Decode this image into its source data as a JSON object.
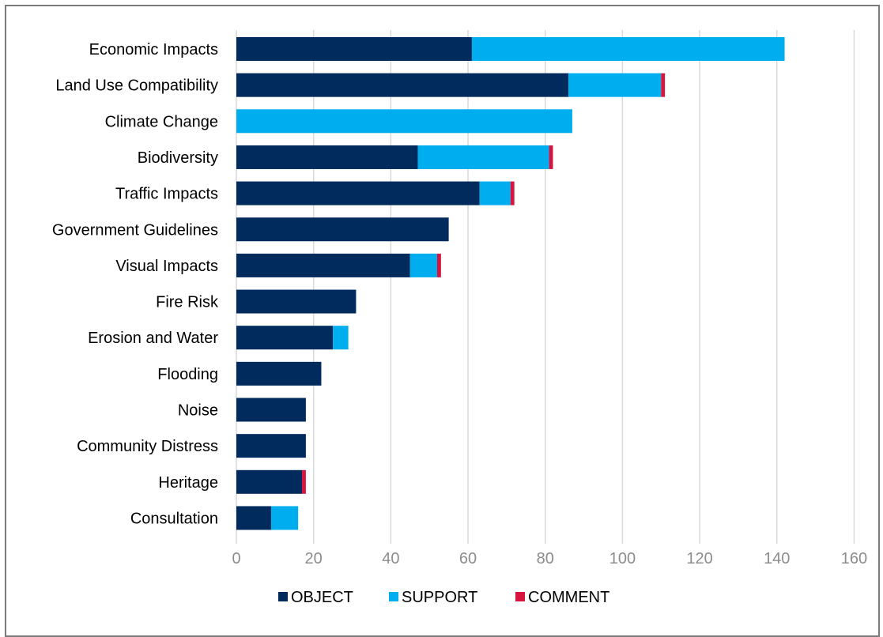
{
  "chart_data": {
    "type": "bar",
    "orientation": "horizontal",
    "stacked": true,
    "categories": [
      "Economic Impacts",
      "Land Use Compatibility",
      "Climate Change",
      "Biodiversity",
      "Traffic Impacts",
      "Government Guidelines",
      "Visual Impacts",
      "Fire Risk",
      "Erosion and Water",
      "Flooding",
      "Noise",
      "Community Distress",
      "Heritage",
      "Consultation"
    ],
    "series": [
      {
        "name": "OBJECT",
        "color": "#002b5c",
        "values": [
          61,
          86,
          0,
          47,
          63,
          55,
          45,
          31,
          25,
          22,
          18,
          18,
          17,
          9
        ]
      },
      {
        "name": "SUPPORT",
        "color": "#00aeef",
        "values": [
          81,
          24,
          87,
          34,
          8,
          0,
          7,
          0,
          4,
          0,
          0,
          0,
          0,
          7
        ]
      },
      {
        "name": "COMMENT",
        "color": "#d7143f",
        "values": [
          0,
          1,
          0,
          1,
          1,
          0,
          1,
          0,
          0,
          0,
          0,
          0,
          1,
          0
        ]
      }
    ],
    "xlim": [
      0,
      160
    ],
    "xticks": [
      "0",
      "20",
      "40",
      "60",
      "80",
      "100",
      "120",
      "140",
      "160"
    ],
    "grid": true,
    "legend": "bottom",
    "title": "",
    "xlabel": "",
    "ylabel": ""
  }
}
